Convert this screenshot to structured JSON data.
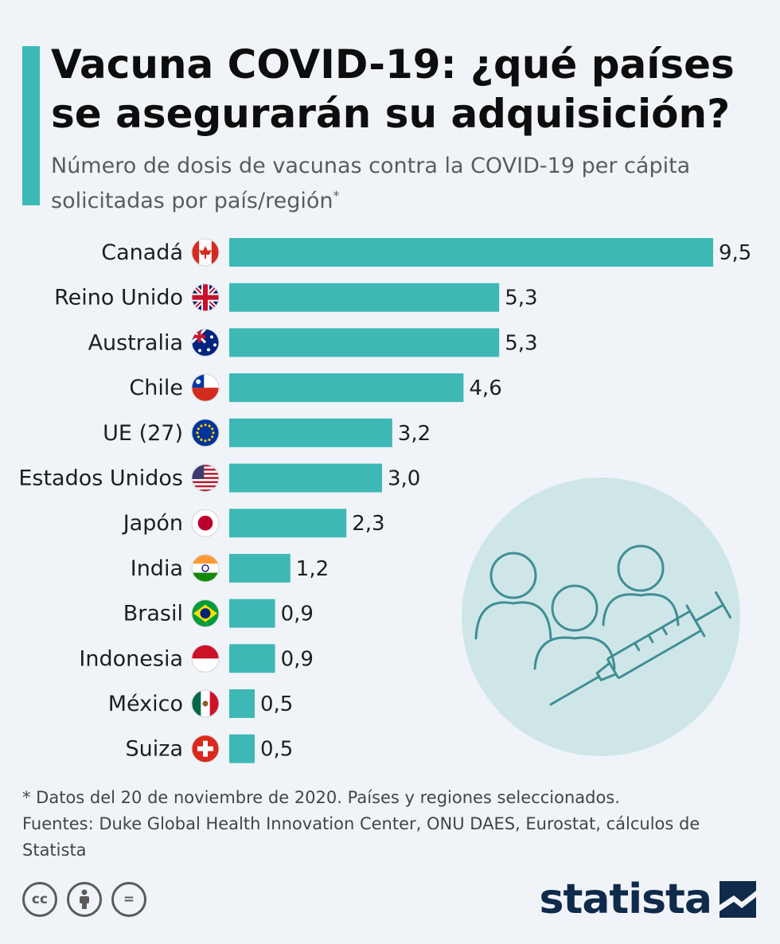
{
  "title": "Vacuna COVID-19: ¿qué países se asegurarán su adquisición?",
  "subtitle": "Número de dosis de vacunas contra la COVID-19 per cápita solicitadas por país/región",
  "subtitle_mark": "*",
  "footnote": "* Datos del 20 de noviembre de 2020. Países y regiones seleccionados.",
  "sources": "Fuentes: Duke Global Health Innovation Center, ONU DAES, Eurostat, cálculos de Statista",
  "brand": "statista",
  "license_icons": [
    "cc-icon",
    "attribution-icon",
    "no-derivatives-icon"
  ],
  "license_labels": [
    "cc",
    "",
    "="
  ],
  "colors": {
    "bar": "#3db8b5",
    "accent": "#3db8b5",
    "illustration_bg": "#cfe6e9",
    "illustration_line": "#3f8f94",
    "brand": "#0f2a4a"
  },
  "chart_data": {
    "type": "bar",
    "orientation": "horizontal",
    "categories": [
      "Canadá",
      "Reino Unido",
      "Australia",
      "Chile",
      "UE (27)",
      "Estados Unidos",
      "Japón",
      "India",
      "Brasil",
      "Indonesia",
      "México",
      "Suiza"
    ],
    "values": [
      9.5,
      5.3,
      5.3,
      4.6,
      3.2,
      3.0,
      2.3,
      1.2,
      0.9,
      0.9,
      0.5,
      0.5
    ],
    "value_labels": [
      "9,5",
      "5,3",
      "5,3",
      "4,6",
      "3,2",
      "3,0",
      "2,3",
      "1,2",
      "0,9",
      "0,9",
      "0,5",
      "0,5"
    ],
    "flag_icons": [
      "canada-flag-icon",
      "uk-flag-icon",
      "australia-flag-icon",
      "chile-flag-icon",
      "eu-flag-icon",
      "usa-flag-icon",
      "japan-flag-icon",
      "india-flag-icon",
      "brazil-flag-icon",
      "indonesia-flag-icon",
      "mexico-flag-icon",
      "switzerland-flag-icon"
    ],
    "xlim": [
      0,
      9.5
    ],
    "grid": false,
    "legend": "none"
  }
}
